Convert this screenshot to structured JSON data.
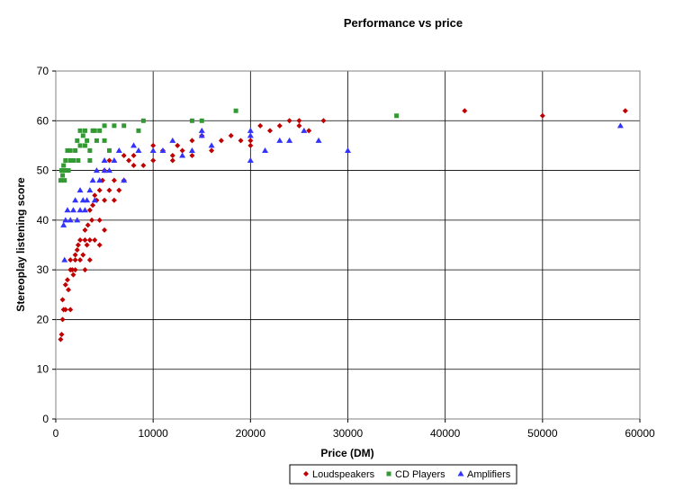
{
  "chart_data": {
    "type": "scatter",
    "title": "Performance vs price",
    "xlabel": "Price (DM)",
    "ylabel": "Stereoplay listening score",
    "xlim": [
      0,
      60000
    ],
    "ylim": [
      0,
      70
    ],
    "xticks": [
      0,
      10000,
      20000,
      30000,
      40000,
      50000,
      60000
    ],
    "yticks": [
      0,
      10,
      20,
      30,
      40,
      50,
      60,
      70
    ],
    "grid": true,
    "legend": "bottom",
    "series": [
      {
        "name": "Loudspeakers",
        "color": "#c00000",
        "marker": "diamond",
        "points": [
          [
            500,
            16
          ],
          [
            600,
            17
          ],
          [
            700,
            20
          ],
          [
            700,
            24
          ],
          [
            800,
            22
          ],
          [
            1000,
            22
          ],
          [
            1000,
            27
          ],
          [
            1200,
            28
          ],
          [
            1300,
            26
          ],
          [
            1500,
            22
          ],
          [
            1500,
            30
          ],
          [
            1500,
            32
          ],
          [
            1700,
            30
          ],
          [
            1800,
            29
          ],
          [
            2000,
            32
          ],
          [
            2000,
            33
          ],
          [
            2000,
            30
          ],
          [
            2200,
            34
          ],
          [
            2300,
            35
          ],
          [
            2500,
            32
          ],
          [
            2500,
            36
          ],
          [
            2800,
            33
          ],
          [
            3000,
            36
          ],
          [
            3000,
            30
          ],
          [
            3000,
            38
          ],
          [
            3200,
            35
          ],
          [
            3300,
            39
          ],
          [
            3500,
            32
          ],
          [
            3500,
            36
          ],
          [
            3500,
            42
          ],
          [
            3700,
            40
          ],
          [
            3800,
            43
          ],
          [
            4000,
            45
          ],
          [
            4000,
            36
          ],
          [
            4200,
            44
          ],
          [
            4500,
            40
          ],
          [
            4500,
            46
          ],
          [
            4500,
            35
          ],
          [
            4800,
            48
          ],
          [
            5000,
            44
          ],
          [
            5000,
            38
          ],
          [
            5000,
            50
          ],
          [
            5500,
            46
          ],
          [
            5500,
            52
          ],
          [
            6000,
            44
          ],
          [
            6000,
            48
          ],
          [
            6500,
            46
          ],
          [
            7000,
            48
          ],
          [
            7000,
            53
          ],
          [
            7500,
            52
          ],
          [
            8000,
            51
          ],
          [
            8000,
            53
          ],
          [
            9000,
            51
          ],
          [
            10000,
            52
          ],
          [
            10000,
            55
          ],
          [
            11000,
            54
          ],
          [
            12000,
            53
          ],
          [
            12000,
            52
          ],
          [
            12500,
            55
          ],
          [
            13000,
            54
          ],
          [
            14000,
            53
          ],
          [
            14000,
            56
          ],
          [
            15000,
            57
          ],
          [
            16000,
            54
          ],
          [
            17000,
            56
          ],
          [
            18000,
            57
          ],
          [
            19000,
            56
          ],
          [
            20000,
            55
          ],
          [
            20000,
            56
          ],
          [
            21000,
            59
          ],
          [
            22000,
            58
          ],
          [
            23000,
            59
          ],
          [
            24000,
            60
          ],
          [
            25000,
            59
          ],
          [
            25000,
            60
          ],
          [
            26000,
            58
          ],
          [
            27500,
            60
          ],
          [
            42000,
            62
          ],
          [
            50000,
            61
          ],
          [
            58500,
            62
          ]
        ]
      },
      {
        "name": "CD Players",
        "color": "#339933",
        "marker": "square",
        "points": [
          [
            500,
            48
          ],
          [
            600,
            50
          ],
          [
            700,
            49
          ],
          [
            800,
            51
          ],
          [
            900,
            48
          ],
          [
            1000,
            52
          ],
          [
            1000,
            50
          ],
          [
            1200,
            54
          ],
          [
            1300,
            50
          ],
          [
            1500,
            52
          ],
          [
            1500,
            54
          ],
          [
            1800,
            52
          ],
          [
            2000,
            54
          ],
          [
            2200,
            56
          ],
          [
            2300,
            52
          ],
          [
            2500,
            58
          ],
          [
            2500,
            55
          ],
          [
            2800,
            57
          ],
          [
            3000,
            58
          ],
          [
            3000,
            55
          ],
          [
            3200,
            56
          ],
          [
            3500,
            52
          ],
          [
            3500,
            54
          ],
          [
            3800,
            58
          ],
          [
            4000,
            58
          ],
          [
            4200,
            56
          ],
          [
            4500,
            58
          ],
          [
            5000,
            59
          ],
          [
            5000,
            56
          ],
          [
            5500,
            54
          ],
          [
            6000,
            59
          ],
          [
            7000,
            59
          ],
          [
            8500,
            58
          ],
          [
            9000,
            60
          ],
          [
            14000,
            60
          ],
          [
            15000,
            60
          ],
          [
            18500,
            62
          ],
          [
            35000,
            61
          ]
        ]
      },
      {
        "name": "Amplifiers",
        "color": "#3333ff",
        "marker": "triangle",
        "points": [
          [
            800,
            39
          ],
          [
            900,
            32
          ],
          [
            1000,
            40
          ],
          [
            1200,
            42
          ],
          [
            1500,
            40
          ],
          [
            1800,
            42
          ],
          [
            2000,
            44
          ],
          [
            2200,
            40
          ],
          [
            2500,
            42
          ],
          [
            2500,
            46
          ],
          [
            2800,
            44
          ],
          [
            3000,
            42
          ],
          [
            3200,
            44
          ],
          [
            3500,
            46
          ],
          [
            3800,
            48
          ],
          [
            4000,
            44
          ],
          [
            4200,
            50
          ],
          [
            4500,
            48
          ],
          [
            5000,
            52
          ],
          [
            5000,
            50
          ],
          [
            5500,
            50
          ],
          [
            6000,
            52
          ],
          [
            6500,
            54
          ],
          [
            7000,
            48
          ],
          [
            8000,
            55
          ],
          [
            8500,
            54
          ],
          [
            10000,
            54
          ],
          [
            11000,
            54
          ],
          [
            12000,
            56
          ],
          [
            13000,
            53
          ],
          [
            14000,
            54
          ],
          [
            15000,
            57
          ],
          [
            15000,
            58
          ],
          [
            16000,
            55
          ],
          [
            20000,
            52
          ],
          [
            20000,
            58
          ],
          [
            20000,
            57
          ],
          [
            21500,
            54
          ],
          [
            23000,
            56
          ],
          [
            24000,
            56
          ],
          [
            25500,
            58
          ],
          [
            27000,
            56
          ],
          [
            30000,
            54
          ],
          [
            58000,
            59
          ]
        ]
      }
    ]
  }
}
